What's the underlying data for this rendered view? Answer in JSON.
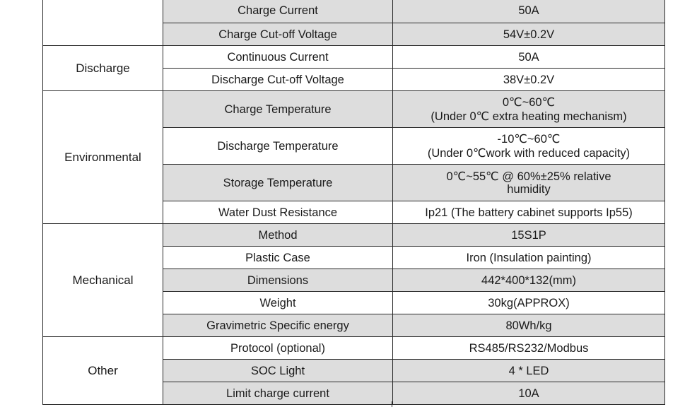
{
  "rows": [
    {
      "param": "Charge Current",
      "value": "50A"
    },
    {
      "param": "Charge Cut-off Voltage",
      "value": "54V±0.2V"
    },
    {
      "param": "Continuous Current",
      "value": "50A"
    },
    {
      "param": "Discharge Cut-off Voltage",
      "value": "38V±0.2V"
    },
    {
      "param": "Charge Temperature",
      "value_line1": "0℃~60℃",
      "value_line2": "(Under 0℃  extra heating mechanism)"
    },
    {
      "param": "Discharge Temperature",
      "value_line1": "-10℃~60℃",
      "value_line2": "(Under 0℃work with reduced capacity)"
    },
    {
      "param": "Storage Temperature",
      "value_line1": "0℃~55℃  @ 60%±25% relative",
      "value_line2": "humidity"
    },
    {
      "param": "Water Dust Resistance",
      "value": "Ip21 (The battery cabinet supports Ip55)"
    },
    {
      "param": "Method",
      "value": "15S1P"
    },
    {
      "param": "Plastic Case",
      "value": "Iron (Insulation painting)"
    },
    {
      "param": "Dimensions",
      "value": "442*400*132(mm)"
    },
    {
      "param": "Weight",
      "value": "30kg(APPROX)"
    },
    {
      "param": "Gravimetric Specific energy",
      "value": "80Wh/kg"
    },
    {
      "param": "Protocol (optional)",
      "value": "RS485/RS232/Modbus"
    },
    {
      "param": "SOC Light",
      "value": "4 * LED"
    },
    {
      "param": "Limit charge current",
      "value": "10A"
    }
  ],
  "categories": {
    "discharge": "Discharge",
    "environmental": "Environmental",
    "mechanical": "Mechanical",
    "other": "Other"
  }
}
